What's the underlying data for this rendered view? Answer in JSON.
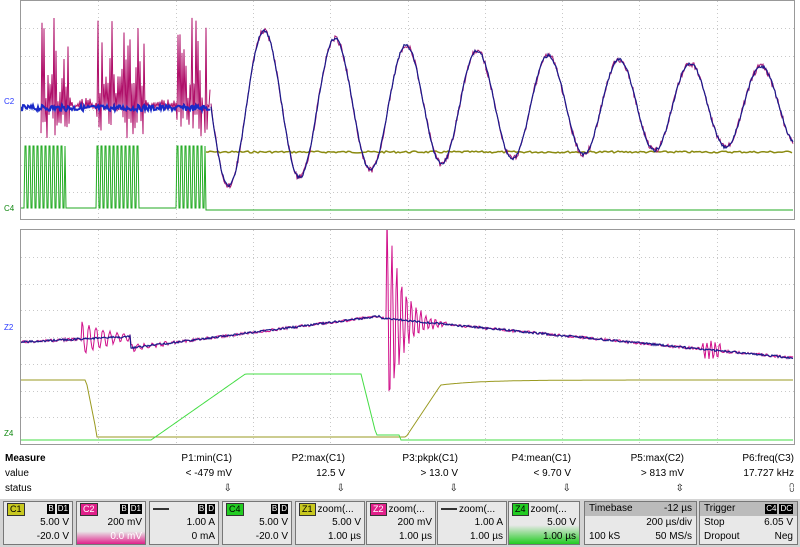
{
  "channel_labels": {
    "c2": "C2",
    "c4": "C4",
    "z2": "Z2",
    "z4": "Z4"
  },
  "measure": {
    "row_labels": [
      "Measure",
      "value",
      "status"
    ],
    "params": [
      {
        "name": "P1:min(C1)",
        "value": "< -479 mV",
        "status": "⇩"
      },
      {
        "name": "P2:max(C1)",
        "value": "12.5 V",
        "status": "⇩"
      },
      {
        "name": "P3:pkpk(C1)",
        "value": "> 13.0 V",
        "status": "⇩"
      },
      {
        "name": "P4:mean(C1)",
        "value": "< 9.70 V",
        "status": "⇩"
      },
      {
        "name": "P5:max(C2)",
        "value": "> 813 mV",
        "status": "⇳"
      },
      {
        "name": "P6:freq(C3)",
        "value": "17.727 kHz",
        "status": "⩇"
      }
    ]
  },
  "channels": [
    {
      "id": "C1",
      "tag": "C1",
      "flags": [
        "B",
        "D1"
      ],
      "scale": "5.00 V",
      "offset": "-20.0 V",
      "color": "#c8c820"
    },
    {
      "id": "C2",
      "tag": "C2",
      "flags": [
        "B",
        "D1"
      ],
      "scale": "200 mV",
      "offset": "0.0 mV",
      "color": "#e0208a"
    },
    {
      "id": "C3",
      "tag": "",
      "flags": [
        "B",
        "D"
      ],
      "scale": "1.00 A",
      "offset": "0 mA",
      "color": "#2a3aff"
    },
    {
      "id": "C4",
      "tag": "C4",
      "flags": [
        "B",
        "D"
      ],
      "scale": "5.00 V",
      "offset": "-20.0 V",
      "color": "#22cc22"
    },
    {
      "id": "Z1",
      "tag": "Z1",
      "name": "zoom(...",
      "scale": "5.00 V",
      "offset": "1.00 µs",
      "color": "#c8c820"
    },
    {
      "id": "Z2",
      "tag": "Z2",
      "name": "zoom(...",
      "scale": "200 mV",
      "offset": "1.00 µs",
      "color": "#e0208a"
    },
    {
      "id": "Z3",
      "tag": "",
      "name": "zoom(...",
      "scale": "1.00 A",
      "offset": "1.00 µs",
      "color": "#2a3aff"
    },
    {
      "id": "Z4",
      "tag": "Z4",
      "name": "zoom(...",
      "scale": "5.00 V",
      "offset": "1.00 µs",
      "color": "#22cc22"
    }
  ],
  "timebase": {
    "label": "Timebase",
    "delay": "-12 µs",
    "per_div": "200 µs/div",
    "samples": "100 kS",
    "rate": "50 MS/s"
  },
  "trigger": {
    "label": "Trigger",
    "flags": [
      "C4",
      "DC"
    ],
    "mode": "Stop",
    "level": "6.05 V",
    "type": "Dropout",
    "slope": "Neg"
  }
}
